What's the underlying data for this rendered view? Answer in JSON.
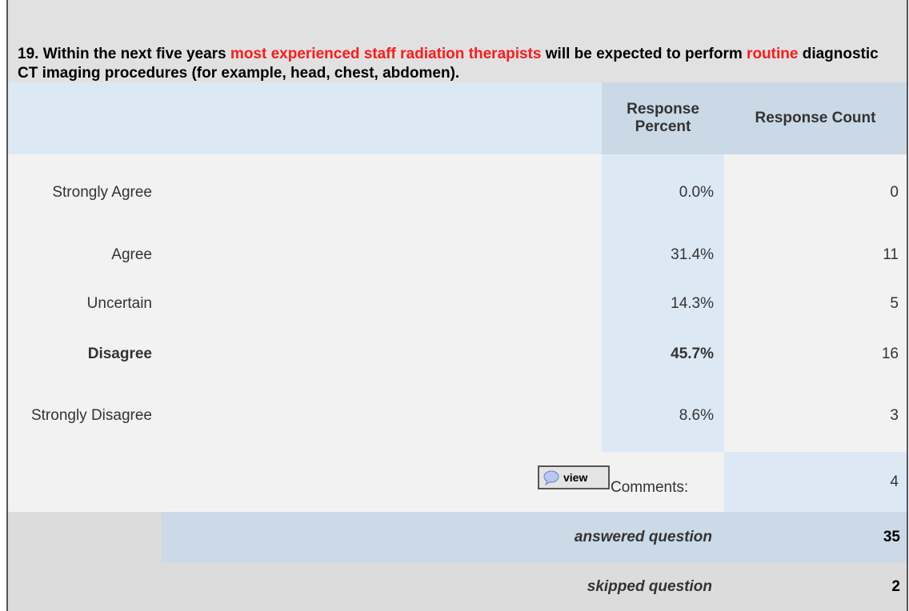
{
  "question": {
    "segments": [
      {
        "text": "19. Within the next five years "
      },
      {
        "text": "most experienced staff radiation therapists",
        "color": "#ff1a1a"
      },
      {
        "text": " will be expected to perform "
      },
      {
        "text": "routine",
        "color": "#ff1a1a"
      },
      {
        "text": " diagnostic CT imaging procedures (for example, head, chest, abdomen)."
      }
    ]
  },
  "table": {
    "headers": [
      "Response Percent",
      "Response Count"
    ],
    "rows": [
      {
        "label": "Strongly Agree",
        "percent": "0.0%",
        "count": "0"
      },
      {
        "label": "Agree",
        "percent": "31.4%",
        "count": "11"
      },
      {
        "label": "Uncertain",
        "percent": "14.3%",
        "count": "5"
      },
      {
        "label": "Disagree",
        "percent": "45.7%",
        "count": "16",
        "bold": true
      },
      {
        "label": "Strongly Disagree",
        "percent": "8.6%",
        "count": "3"
      }
    ],
    "comments": {
      "button": "view",
      "label": "Comments:",
      "count": "4"
    },
    "answered": {
      "label": "answered question",
      "count": "35"
    },
    "skipped": {
      "label": "skipped question",
      "count": "2"
    }
  }
}
